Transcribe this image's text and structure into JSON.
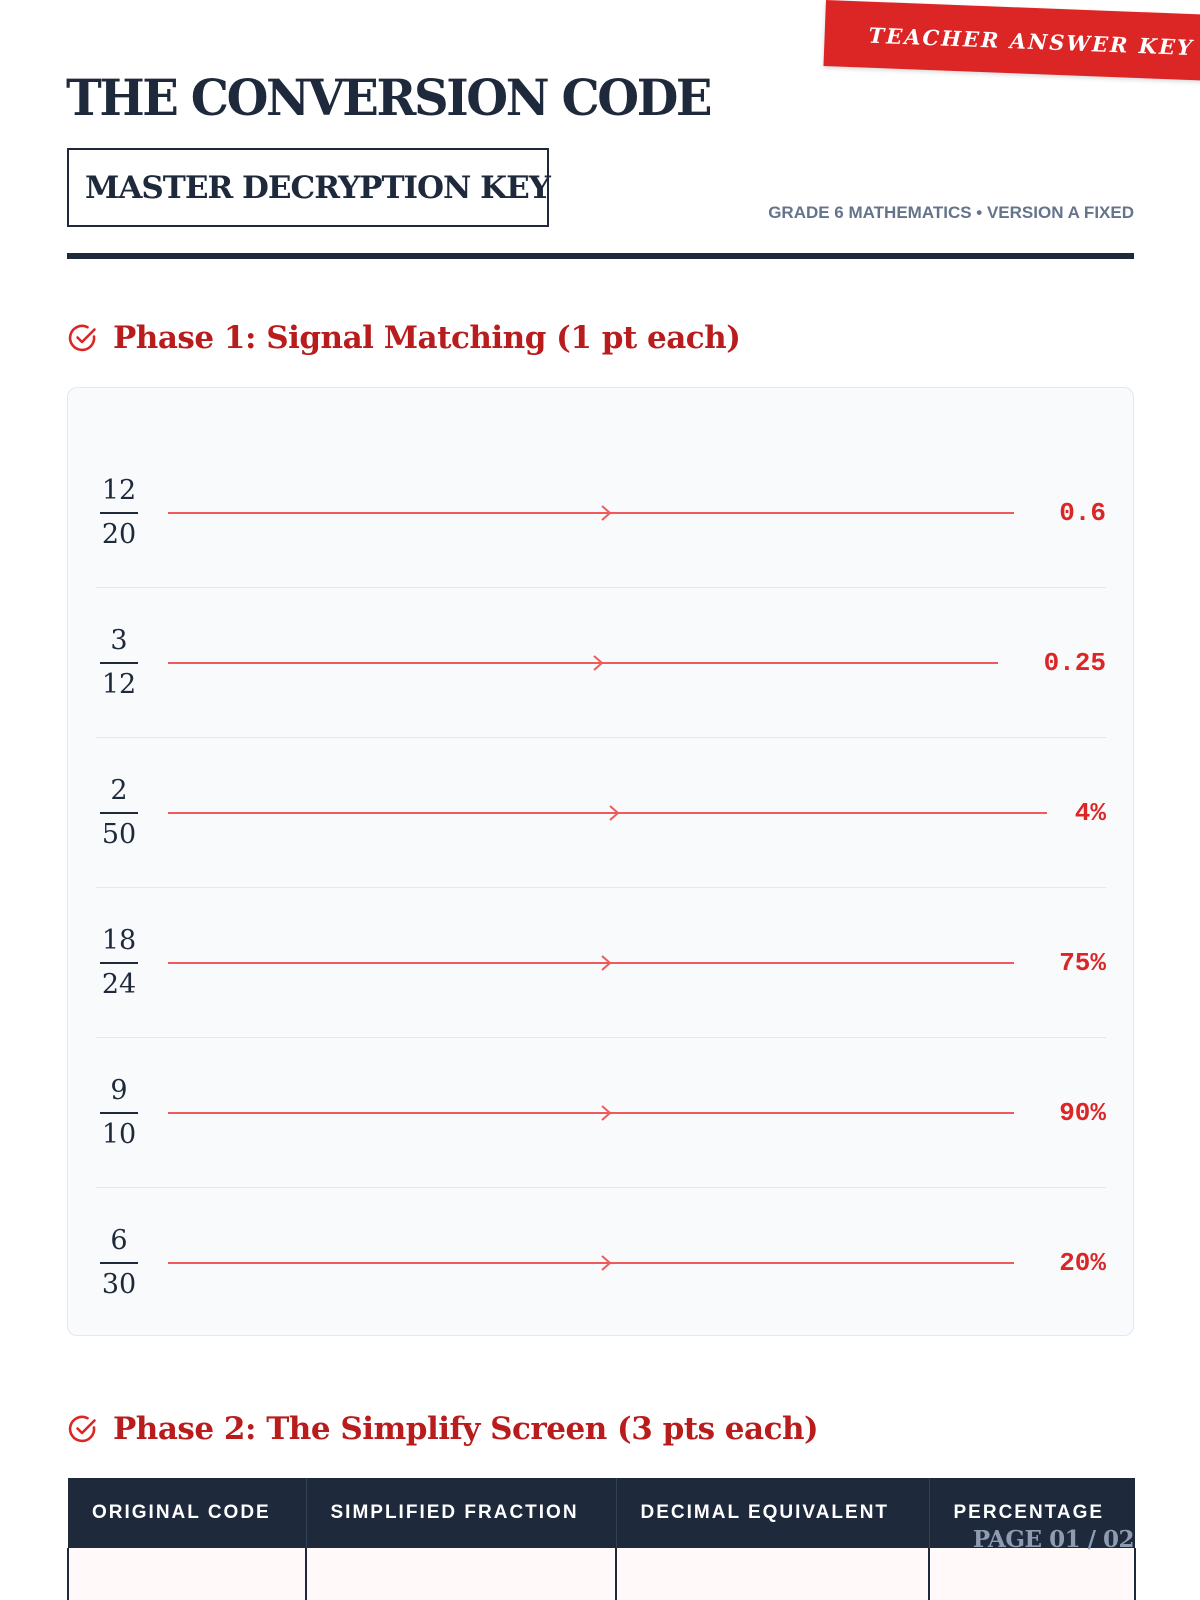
{
  "stamp": {
    "label": "TEACHER ANSWER KEY"
  },
  "header": {
    "title": "THE CONVERSION CODE",
    "subtitle": "MASTER DECRYPTION KEY",
    "meta": "GRADE 6 MATHEMATICS • VERSION A FIXED"
  },
  "phase1": {
    "heading": "Phase 1: Signal Matching (1 pt each)",
    "icon": "check-circle-icon",
    "rows": [
      {
        "numerator": "12",
        "denominator": "20",
        "answer": "0.6"
      },
      {
        "numerator": "3",
        "denominator": "12",
        "answer": "0.25"
      },
      {
        "numerator": "2",
        "denominator": "50",
        "answer": "4%"
      },
      {
        "numerator": "18",
        "denominator": "24",
        "answer": "75%"
      },
      {
        "numerator": "9",
        "denominator": "10",
        "answer": "90%"
      },
      {
        "numerator": "6",
        "denominator": "30",
        "answer": "20%"
      }
    ]
  },
  "phase2": {
    "heading": "Phase 2: The Simplify Screen (3 pts each)",
    "icon": "check-circle-icon",
    "columns": [
      "ORIGINAL CODE",
      "SIMPLIFIED FRACTION",
      "DECIMAL EQUIVALENT",
      "PERCENTAGE"
    ]
  },
  "footer": {
    "page": "PAGE 01 / 02"
  },
  "colors": {
    "navy": "#1e293b",
    "accent_red": "#dc2626",
    "heading_red": "#b91c1c",
    "line_red": "#ef5b5b",
    "muted": "#64748b"
  }
}
